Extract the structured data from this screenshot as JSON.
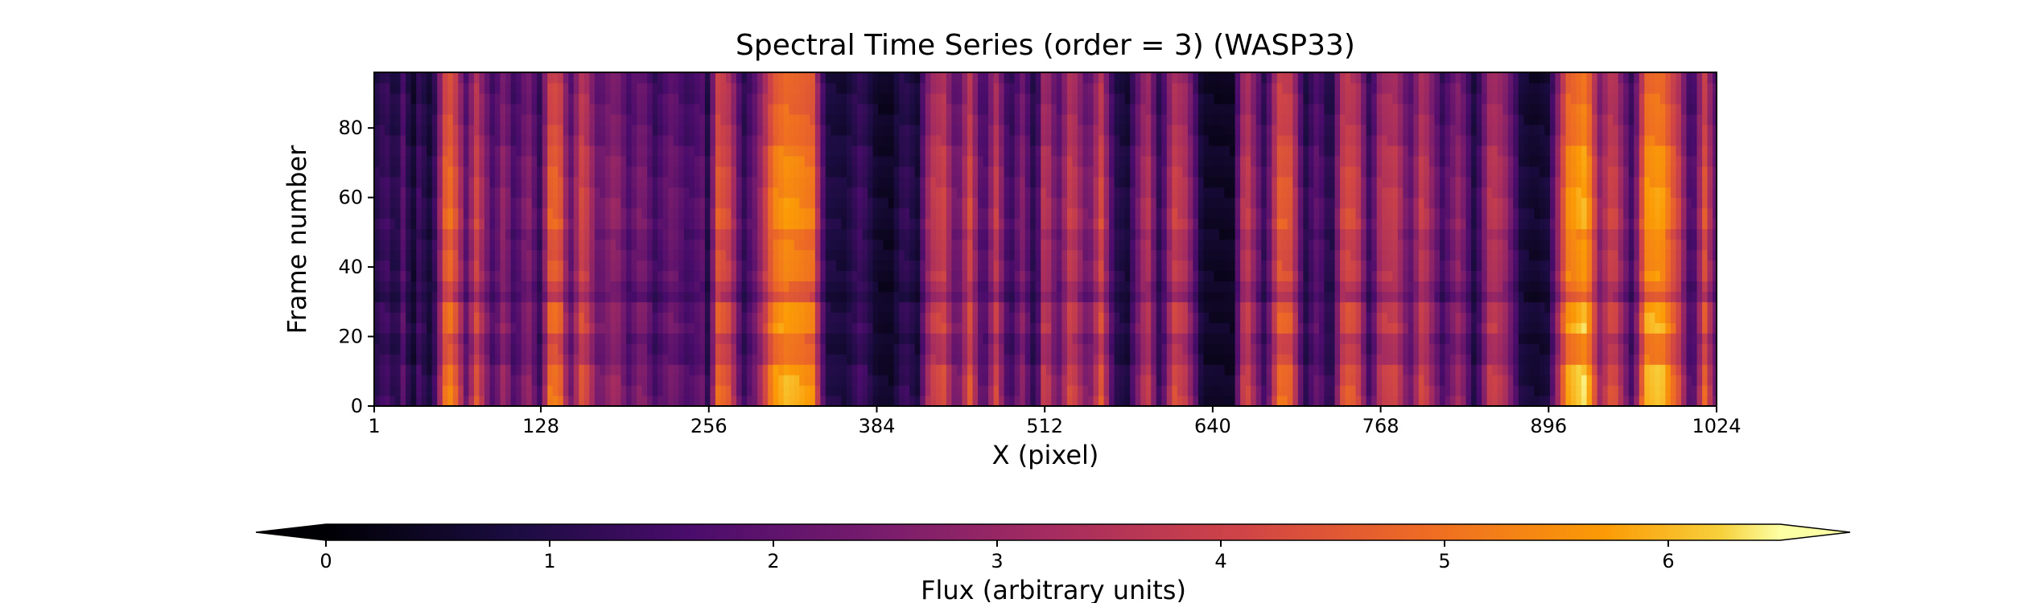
{
  "chart_data": {
    "type": "heatmap",
    "title": "Spectral Time Series (order = 3) (WASP33)",
    "xlabel": "X (pixel)",
    "ylabel": "Frame number",
    "xlim": [
      1,
      1024
    ],
    "ylim": [
      0,
      96
    ],
    "x_ticks": [
      1,
      128,
      256,
      384,
      512,
      640,
      768,
      896,
      1024
    ],
    "y_ticks": [
      0,
      20,
      40,
      60,
      80
    ],
    "colormap": "inferno",
    "colorbar": {
      "label": "Flux (arbitrary units)",
      "range": [
        0,
        6.5
      ],
      "ticks": [
        0,
        1,
        2,
        3,
        4,
        5,
        6
      ],
      "extend": "both",
      "orientation": "horizontal",
      "placement": "bottom"
    },
    "column_flux_profile": {
      "description_units": "flux per x pixel, averaged over frames",
      "x": [
        1,
        10,
        18,
        22,
        30,
        35,
        45,
        55,
        60,
        65,
        72,
        78,
        85,
        92,
        100,
        108,
        118,
        128,
        134,
        142,
        150,
        160,
        172,
        185,
        195,
        205,
        215,
        228,
        240,
        252,
        256,
        262,
        272,
        282,
        292,
        305,
        315,
        325,
        335,
        345,
        360,
        372,
        384,
        395,
        405,
        415,
        425,
        435,
        445,
        455,
        465,
        475,
        485,
        495,
        505,
        512,
        522,
        532,
        545,
        555,
        565,
        575,
        590,
        600,
        610,
        620,
        632,
        645,
        655,
        665,
        680,
        690,
        700,
        710,
        720,
        730,
        740,
        750,
        760,
        768,
        780,
        790,
        800,
        815,
        828,
        840,
        852,
        862,
        875,
        885,
        896,
        910,
        925,
        935,
        945,
        960,
        970,
        982,
        995,
        1005,
        1015,
        1024
      ],
      "flux": [
        1.0,
        1.6,
        0.8,
        2.2,
        0.5,
        1.5,
        0.6,
        4.8,
        5.2,
        4.0,
        1.8,
        4.5,
        3.0,
        1.6,
        3.2,
        1.5,
        3.0,
        1.2,
        4.8,
        5.0,
        2.0,
        4.6,
        2.2,
        3.2,
        1.8,
        2.8,
        1.5,
        2.5,
        1.6,
        2.2,
        0.7,
        4.8,
        4.2,
        1.2,
        2.5,
        5.4,
        5.8,
        5.6,
        5.3,
        1.0,
        0.8,
        1.6,
        0.6,
        0.5,
        1.4,
        0.8,
        3.8,
        4.2,
        2.0,
        4.4,
        1.4,
        4.0,
        1.2,
        2.8,
        0.8,
        4.2,
        2.0,
        4.3,
        2.2,
        4.4,
        1.2,
        0.8,
        4.0,
        1.0,
        4.2,
        3.6,
        0.6,
        0.5,
        0.5,
        4.4,
        1.2,
        4.8,
        4.6,
        1.0,
        2.2,
        0.8,
        4.5,
        4.2,
        1.2,
        3.8,
        4.0,
        2.0,
        4.2,
        1.6,
        3.2,
        0.8,
        4.0,
        3.4,
        0.9,
        0.6,
        0.8,
        5.6,
        6.2,
        3.0,
        4.5,
        1.4,
        5.8,
        6.0,
        4.2,
        1.2,
        4.6,
        2.0
      ]
    },
    "frame_variation": {
      "description_units": "multiplicative flux scaling per frame band",
      "frames": [
        [
          0,
          10,
          1.05
        ],
        [
          10,
          20,
          0.92
        ],
        [
          20,
          30,
          1.08
        ],
        [
          30,
          35,
          0.85
        ],
        [
          35,
          50,
          0.95
        ],
        [
          50,
          65,
          1.05
        ],
        [
          65,
          75,
          0.95
        ],
        [
          75,
          96,
          0.9
        ]
      ]
    }
  }
}
